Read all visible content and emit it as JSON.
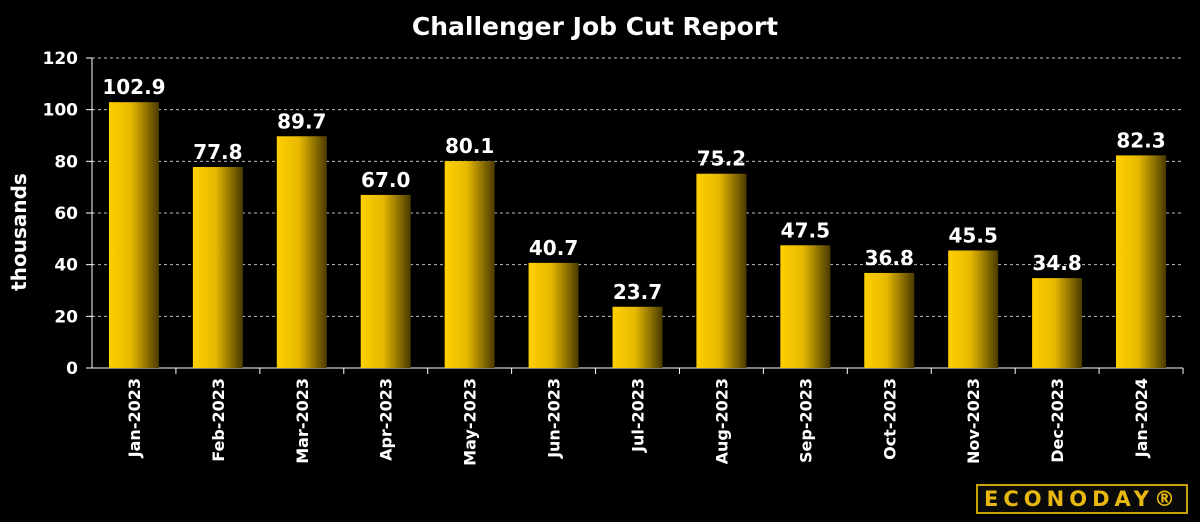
{
  "chart_data": {
    "type": "bar",
    "title": "Challenger Job Cut Report",
    "xlabel": "",
    "ylabel": "thousands",
    "categories": [
      "Jan-2023",
      "Feb-2023",
      "Mar-2023",
      "Apr-2023",
      "May-2023",
      "Jun-2023",
      "Jul-2023",
      "Aug-2023",
      "Sep-2023",
      "Oct-2023",
      "Nov-2023",
      "Dec-2023",
      "Jan-2024"
    ],
    "values": [
      102.9,
      77.8,
      89.7,
      67.0,
      80.1,
      40.7,
      23.7,
      75.2,
      47.5,
      36.8,
      45.5,
      34.8,
      82.3
    ],
    "value_labels": [
      "102.9",
      "77.8",
      "89.7",
      "67.0",
      "80.1",
      "40.7",
      "23.7",
      "75.2",
      "47.5",
      "36.8",
      "45.5",
      "34.8",
      "82.3"
    ],
    "ylim": [
      0,
      120
    ],
    "yticks": [
      0,
      20,
      40,
      60,
      80,
      100,
      120
    ],
    "grid": true,
    "bar_color": "#f2c400",
    "background": "#000000"
  },
  "branding": {
    "logo_text": "ECONODAY®"
  }
}
